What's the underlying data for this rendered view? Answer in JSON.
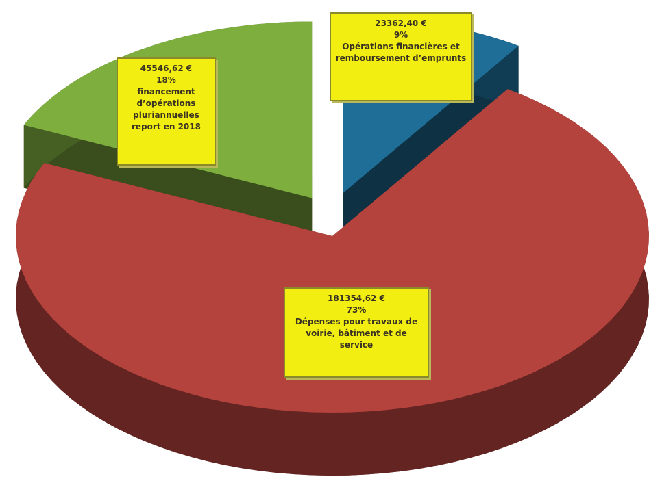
{
  "chart_data": {
    "type": "pie",
    "categories": [
      "Opérations financières et remboursement d’emprunts",
      "Dépenses pour travaux de voirie, bâtiment et de service",
      "financement d’opérations pluriannuelles report en 2018"
    ],
    "values": [
      23362.4,
      181354.62,
      45546.62
    ],
    "value_labels": [
      "23362,40 €",
      "181354,62 €",
      "45546,62 €"
    ],
    "percent_labels": [
      "9%",
      "73%",
      "18%"
    ],
    "colors": [
      "#1f6e98",
      "#b5433d",
      "#7eae3e"
    ],
    "explode": [
      true,
      false,
      true
    ],
    "three_d": true
  }
}
